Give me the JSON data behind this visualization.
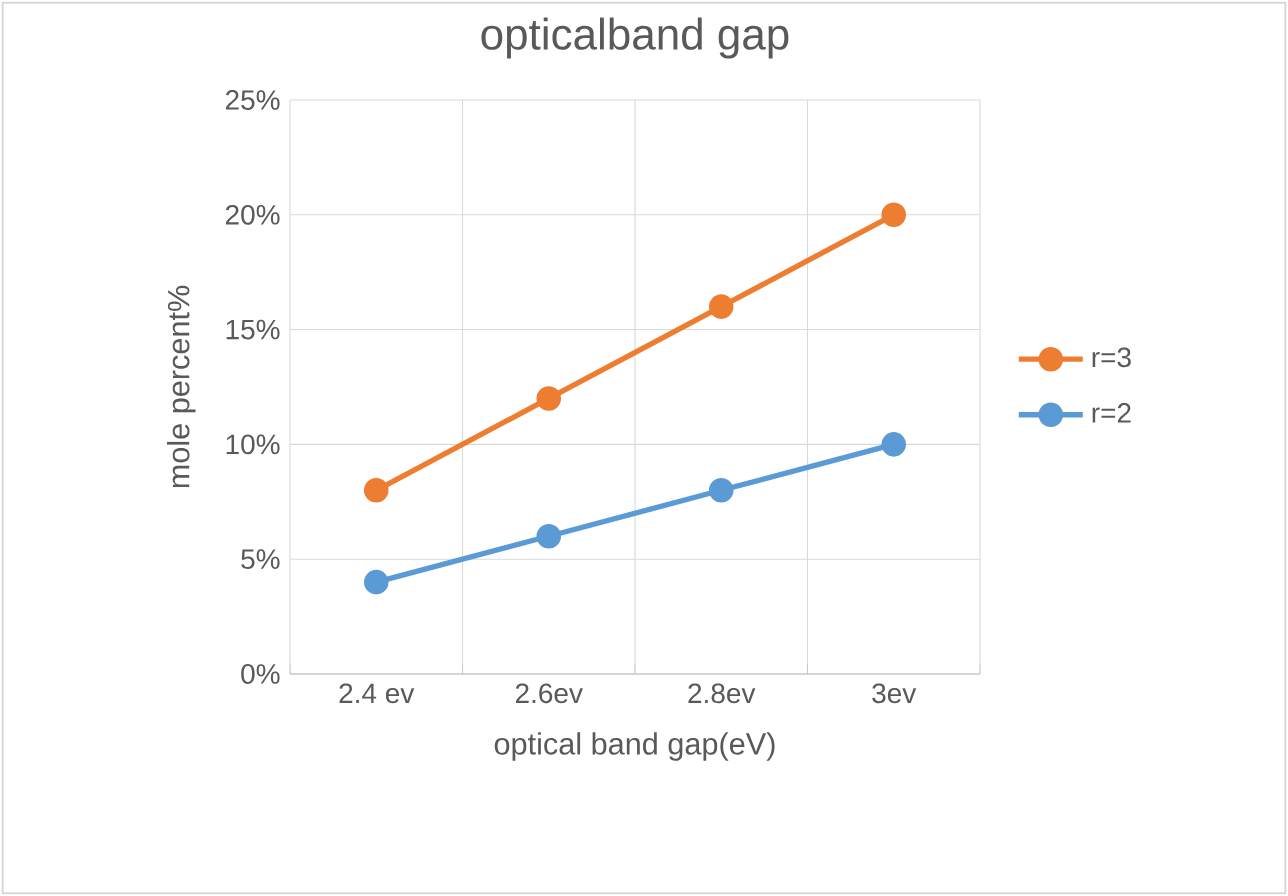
{
  "chart_data": {
    "type": "line",
    "title": "opticalband gap",
    "xlabel": "optical band gap(eV)",
    "ylabel": "mole percent%",
    "categories": [
      "2.4 ev",
      "2.6ev",
      "2.8ev",
      "3ev"
    ],
    "series": [
      {
        "name": "r=3",
        "color": "#ed7d31",
        "values": [
          8,
          12,
          16,
          20
        ]
      },
      {
        "name": "r=2",
        "color": "#5b9bd5",
        "values": [
          4,
          6,
          8,
          10
        ]
      }
    ],
    "ylim": [
      0,
      25
    ],
    "yticks": [
      {
        "value": 0,
        "label": "0%"
      },
      {
        "value": 5,
        "label": "5%"
      },
      {
        "value": 10,
        "label": "10%"
      },
      {
        "value": 15,
        "label": "15%"
      },
      {
        "value": 20,
        "label": "20%"
      },
      {
        "value": 25,
        "label": "25%"
      }
    ],
    "grid": true,
    "legend": "right",
    "marker": "circle",
    "line_style": "solid"
  }
}
